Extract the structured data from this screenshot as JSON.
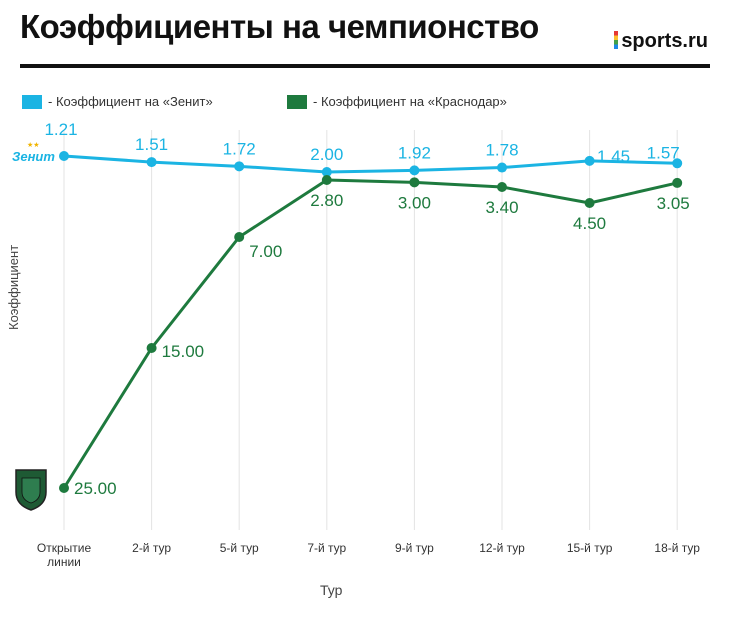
{
  "title": "Коэффициенты на чемпионство",
  "brand": "sports.ru",
  "chart_data": {
    "type": "line",
    "title": "Коэффициенты на чемпионство",
    "xlabel": "Тур",
    "ylabel": "Коэффициент",
    "categories": [
      "Открытие линии",
      "2-й тур",
      "5-й тур",
      "7-й тур",
      "9-й тур",
      "12-й тур",
      "15-й тур",
      "18-й тур"
    ],
    "category_lines": [
      [
        "Открытие",
        "линии"
      ],
      [
        "2-й тур"
      ],
      [
        "5-й тур"
      ],
      [
        "7-й тур"
      ],
      [
        "9-й тур"
      ],
      [
        "12-й тур"
      ],
      [
        "15-й тур"
      ],
      [
        "18-й тур"
      ]
    ],
    "series": [
      {
        "name": "Коэффициент на «Зенит»",
        "legend": "- Коэффициент на «Зенит»",
        "color": "#1bb4e3",
        "values": [
          1.21,
          1.51,
          1.72,
          2.0,
          1.92,
          1.78,
          1.45,
          1.57
        ],
        "labels": [
          "1.21",
          "1.51",
          "1.72",
          "2.00",
          "1.92",
          "1.78",
          "1.45",
          "1.57"
        ]
      },
      {
        "name": "Коэффициент на «Краснодар»",
        "legend": "- Коэффициент на «Краснодар»",
        "color": "#1e7a3e",
        "values": [
          25.0,
          15.0,
          7.0,
          2.8,
          3.0,
          3.4,
          4.5,
          3.05
        ],
        "labels": [
          "25.00",
          "15.00",
          "7.00",
          "2.80",
          "3.00",
          "3.40",
          "4.50",
          "3.05"
        ]
      }
    ],
    "ylim": [
      1,
      25
    ],
    "y_inverted": true,
    "grid": "vertical",
    "legend_position": "top-left"
  }
}
